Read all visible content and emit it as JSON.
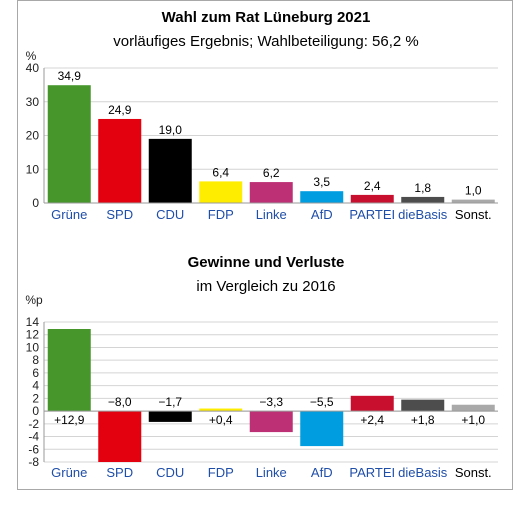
{
  "chart_data": [
    {
      "type": "bar",
      "title": "Wahl zum Rat Lüneburg 2021",
      "subtitle": "vorläufiges Ergebnis; Wahlbeteiligung: 56,2 %",
      "ylabel": "%",
      "ylim": [
        0,
        40
      ],
      "yticks": [
        "0",
        "10",
        "20",
        "30",
        "40"
      ],
      "grid": true,
      "categories": [
        "Grüne",
        "SPD",
        "CDU",
        "FDP",
        "Linke",
        "AfD",
        "PARTEI",
        "dieBasis",
        "Sonst."
      ],
      "values": [
        34.9,
        24.9,
        19.0,
        6.4,
        6.2,
        3.5,
        2.4,
        1.8,
        1.0
      ],
      "value_labels": [
        "34,9",
        "24,9",
        "19,0",
        "6,4",
        "6,2",
        "3,5",
        "2,4",
        "1,8",
        "1,0"
      ]
    },
    {
      "type": "bar",
      "title": "Gewinne und Verluste",
      "subtitle": "im Vergleich zu 2016",
      "ylabel": "%p",
      "ylim": [
        -8,
        14
      ],
      "yticks": [
        "-8",
        "-6",
        "-4",
        "-2",
        "0",
        "2",
        "4",
        "6",
        "8",
        "10",
        "12",
        "14"
      ],
      "grid": true,
      "categories": [
        "Grüne",
        "SPD",
        "CDU",
        "FDP",
        "Linke",
        "AfD",
        "PARTEI",
        "dieBasis",
        "Sonst."
      ],
      "values": [
        12.9,
        -8.0,
        -1.7,
        0.4,
        -3.3,
        -5.5,
        2.4,
        1.8,
        1.0
      ],
      "value_labels": [
        "+12,9",
        "−8,0",
        "−1,7",
        "+0,4",
        "−3,3",
        "−5,5",
        "+2,4",
        "+1,8",
        "+1,0"
      ]
    }
  ],
  "colors": {
    "Grüne": "#46962b",
    "SPD": "#e3000f",
    "CDU": "#000000",
    "FDP": "#ffed00",
    "Linke": "#be3075",
    "AfD": "#009ee0",
    "PARTEI": "#c8102e",
    "dieBasis": "#4d4d4d",
    "Sonst.": "#a9a9a9"
  },
  "plain_categories": [
    "Sonst."
  ]
}
